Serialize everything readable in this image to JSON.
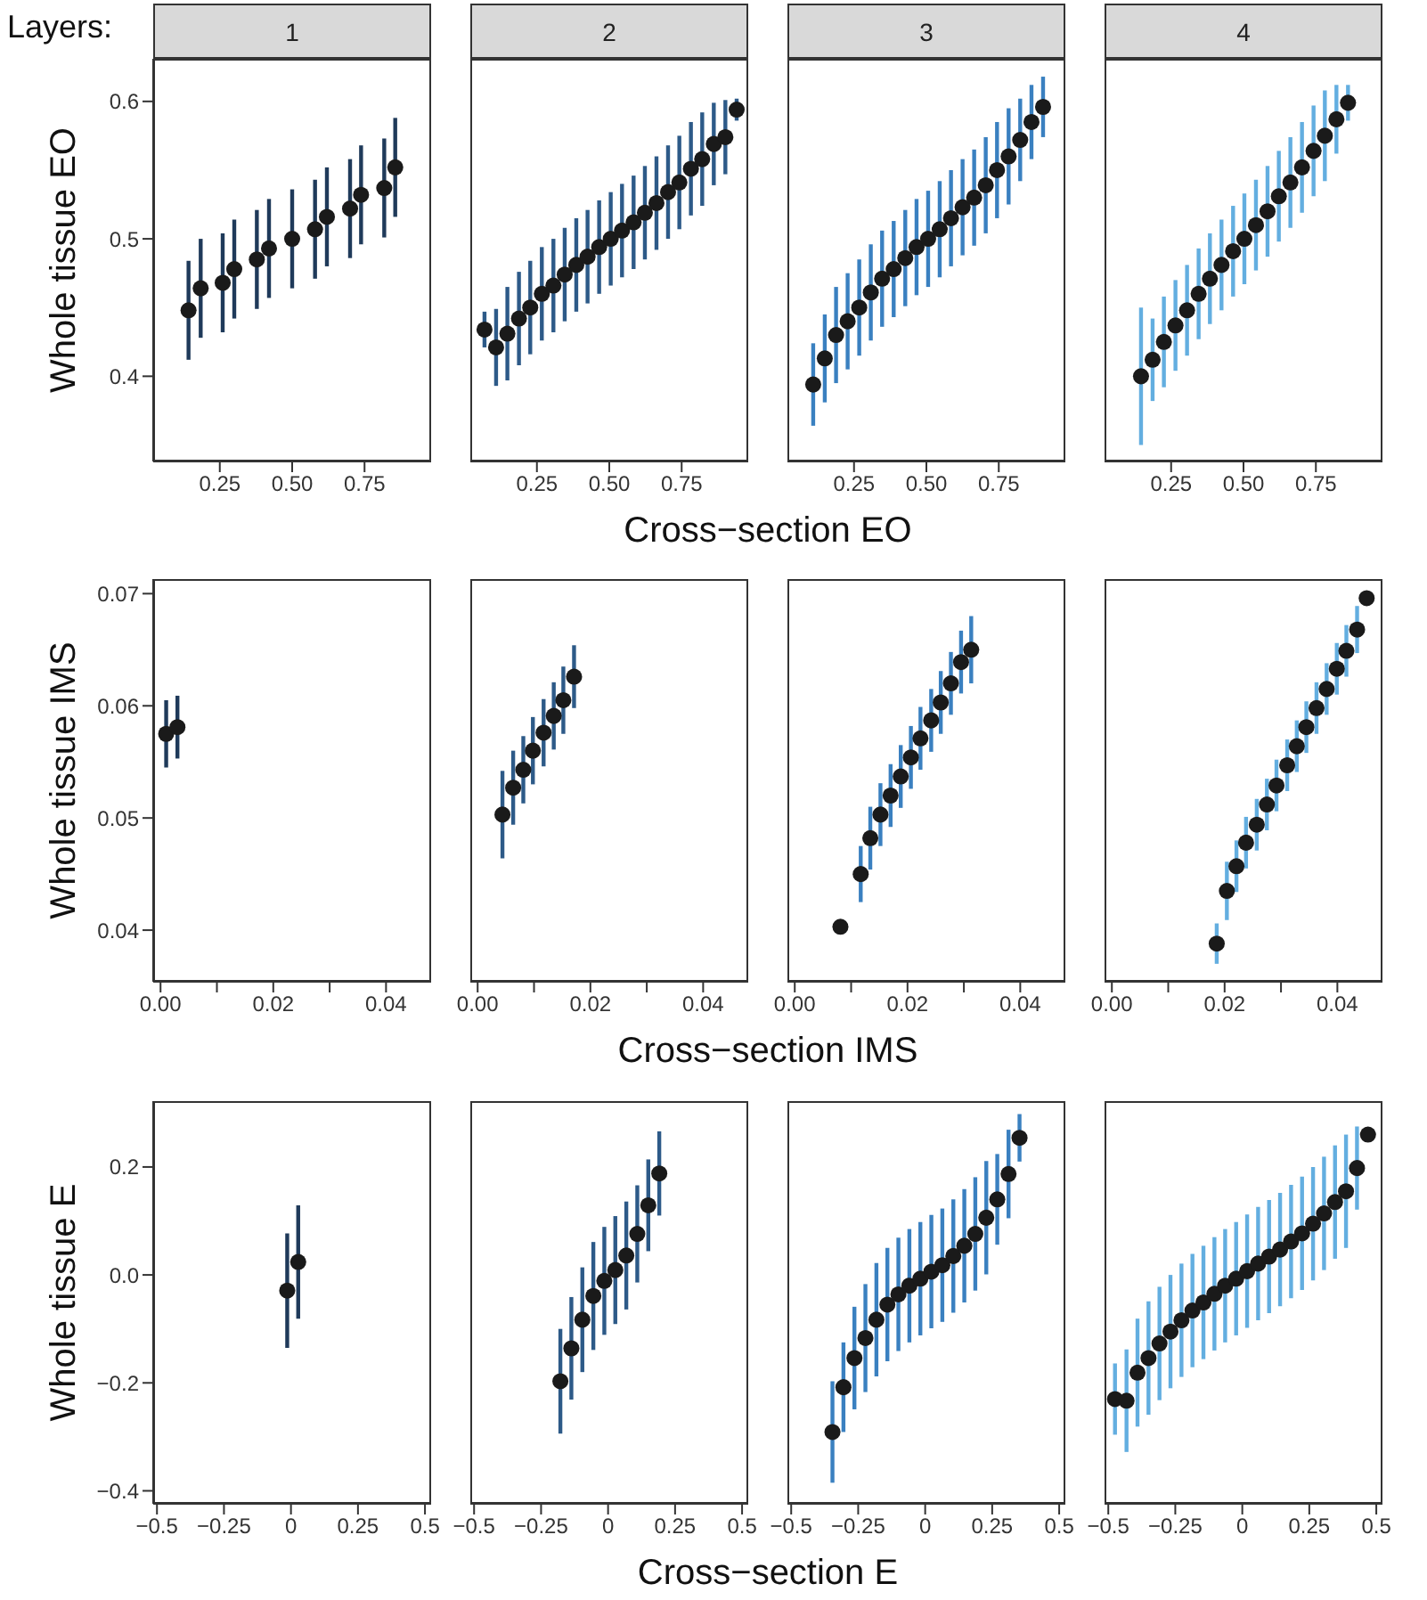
{
  "chart_data": [
    {
      "type": "scatter",
      "title": "1",
      "annotations": [
        "Layers:"
      ],
      "xlabel": "Cross−section EO",
      "ylabel": "Whole tissue EO",
      "marker": "circle",
      "color": "#1f3a5a",
      "series": [
        {
          "color": "#1a1a1a",
          "values": [
            0.448,
            0.464,
            0.468,
            0.478,
            0.485,
            0.493,
            0.5,
            0.507,
            0.516,
            0.522,
            0.532,
            0.537,
            0.552
          ],
          "errors": [
            0.036,
            0.036,
            0.036,
            0.036,
            0.036,
            0.036,
            0.036,
            0.036,
            0.036,
            0.036,
            0.036,
            0.036,
            0.036
          ]
        }
      ],
      "xlim": [
        0.02,
        0.98
      ],
      "ylim": [
        0.338,
        0.631
      ],
      "xticks": [
        0.25,
        {
          "value": 0.5,
          "label": "0.50"
        },
        0.75
      ],
      "yticks": [
        0.4,
        0.5,
        0.6
      ],
      "x": [
        0.142,
        0.184,
        0.26,
        0.3,
        0.378,
        0.42,
        0.5,
        0.579,
        0.62,
        0.7,
        0.738,
        0.818,
        0.856
      ]
    },
    {
      "type": "scatter",
      "title": "2",
      "tick_labels": "x",
      "marker": "circle",
      "color": "#2d5a88",
      "series": [
        {
          "color": "#1a1a1a",
          "values": [
            0.434,
            0.421,
            0.431,
            0.442,
            0.45,
            0.46,
            0.466,
            0.474,
            0.481,
            0.487,
            0.494,
            0.5,
            0.506,
            0.512,
            0.519,
            0.526,
            0.534,
            0.541,
            0.551,
            0.558,
            0.569,
            0.574,
            0.594
          ],
          "errors": [
            0.013,
            0.028,
            0.034,
            0.034,
            0.034,
            0.034,
            0.034,
            0.034,
            0.034,
            0.034,
            0.034,
            0.034,
            0.034,
            0.034,
            0.034,
            0.034,
            0.034,
            0.034,
            0.034,
            0.034,
            0.03,
            0.027,
            0.008
          ]
        }
      ],
      "xlim": [
        0.02,
        0.98
      ],
      "ylim": [
        0.338,
        0.631
      ],
      "xticks": [
        0.25,
        {
          "value": 0.5,
          "label": "0.50"
        },
        0.75
      ],
      "yticks": [
        0.4,
        0.5,
        0.6
      ],
      "x": [
        0.069,
        0.109,
        0.148,
        0.188,
        0.227,
        0.267,
        0.307,
        0.346,
        0.386,
        0.425,
        0.465,
        0.505,
        0.544,
        0.584,
        0.623,
        0.663,
        0.703,
        0.742,
        0.782,
        0.821,
        0.861,
        0.901,
        0.94
      ]
    },
    {
      "type": "scatter",
      "title": "3",
      "tick_labels": "x",
      "marker": "circle",
      "color": "#3a80c0",
      "series": [
        {
          "color": "#1a1a1a",
          "values": [
            0.394,
            0.413,
            0.43,
            0.44,
            0.45,
            0.461,
            0.471,
            0.478,
            0.486,
            0.494,
            0.5,
            0.507,
            0.515,
            0.523,
            0.53,
            0.539,
            0.55,
            0.56,
            0.572,
            0.585,
            0.596
          ],
          "errors": [
            0.03,
            0.032,
            0.035,
            0.035,
            0.035,
            0.035,
            0.035,
            0.035,
            0.035,
            0.035,
            0.035,
            0.035,
            0.035,
            0.035,
            0.035,
            0.035,
            0.035,
            0.035,
            0.03,
            0.027,
            0.022
          ]
        }
      ],
      "xlim": [
        0.02,
        0.98
      ],
      "ylim": [
        0.338,
        0.631
      ],
      "xticks": [
        0.25,
        {
          "value": 0.5,
          "label": "0.50"
        },
        0.75
      ],
      "yticks": [
        0.4,
        0.5,
        0.6
      ],
      "x": [
        0.109,
        0.149,
        0.188,
        0.228,
        0.268,
        0.308,
        0.347,
        0.387,
        0.427,
        0.466,
        0.506,
        0.546,
        0.585,
        0.625,
        0.665,
        0.705,
        0.744,
        0.784,
        0.824,
        0.863,
        0.903
      ]
    },
    {
      "type": "scatter",
      "title": "4",
      "tick_labels": "x",
      "marker": "circle",
      "color": "#63aee0",
      "series": [
        {
          "color": "#1a1a1a",
          "values": [
            0.4,
            0.412,
            0.425,
            0.437,
            0.448,
            0.46,
            0.471,
            0.481,
            0.491,
            0.5,
            0.51,
            0.52,
            0.531,
            0.541,
            0.552,
            0.564,
            0.575,
            0.587,
            0.599
          ],
          "errors": [
            0.05,
            0.03,
            0.033,
            0.033,
            0.033,
            0.033,
            0.033,
            0.033,
            0.033,
            0.033,
            0.033,
            0.033,
            0.033,
            0.033,
            0.033,
            0.033,
            0.033,
            0.025,
            0.013
          ]
        }
      ],
      "xlim": [
        0.02,
        0.98
      ],
      "ylim": [
        0.338,
        0.631
      ],
      "xticks": [
        0.25,
        {
          "value": 0.5,
          "label": "0.50"
        },
        0.75
      ],
      "yticks": [
        0.4,
        0.5,
        0.6
      ],
      "x": [
        0.146,
        0.186,
        0.225,
        0.265,
        0.305,
        0.345,
        0.384,
        0.424,
        0.464,
        0.503,
        0.543,
        0.583,
        0.622,
        0.662,
        0.702,
        0.742,
        0.781,
        0.821,
        0.861
      ]
    },
    {
      "type": "scatter",
      "xlabel": "Cross−section IMS",
      "ylabel": "Whole tissue IMS",
      "marker": "circle",
      "color": "#1f3a5a",
      "series": [
        {
          "color": "#1a1a1a",
          "values": [
            0.0575,
            0.0581
          ],
          "errors": [
            0.003,
            0.0028
          ]
        }
      ],
      "xlim": [
        -0.0013,
        0.048
      ],
      "ylim": [
        0.0354,
        0.0713
      ],
      "xticks": [
        {
          "value": 0,
          "label": "0.00"
        },
        {
          "value": 0.01,
          "label": null
        },
        0.02,
        {
          "value": 0.03,
          "label": null
        },
        0.04
      ],
      "yticks": [
        0.04,
        0.05,
        0.06,
        0.07
      ],
      "x": [
        0.001,
        0.003
      ]
    },
    {
      "type": "scatter",
      "tick_labels": "x",
      "marker": "circle",
      "color": "#2d5a88",
      "series": [
        {
          "color": "#1a1a1a",
          "values": [
            0.0503,
            0.0527,
            0.0543,
            0.056,
            0.0576,
            0.0591,
            0.0605,
            0.0626
          ],
          "errors": [
            0.0039,
            0.0033,
            0.003,
            0.003,
            0.003,
            0.003,
            0.003,
            0.0028
          ]
        }
      ],
      "xlim": [
        -0.0013,
        0.048
      ],
      "ylim": [
        0.0354,
        0.0713
      ],
      "xticks": [
        {
          "value": 0,
          "label": "0.00"
        },
        {
          "value": 0.01,
          "label": null
        },
        0.02,
        {
          "value": 0.03,
          "label": null
        },
        0.04
      ],
      "yticks": [
        0.04,
        0.05,
        0.06,
        0.07
      ],
      "x": [
        0.0044,
        0.0063,
        0.0081,
        0.0098,
        0.0117,
        0.0135,
        0.0152,
        0.0171
      ]
    },
    {
      "type": "scatter",
      "tick_labels": "x",
      "marker": "circle",
      "color": "#3a80c0",
      "series": [
        {
          "color": "#1a1a1a",
          "values": [
            0.0403,
            0.045,
            0.0482,
            0.0503,
            0.052,
            0.0537,
            0.0554,
            0.0571,
            0.0587,
            0.0603,
            0.062,
            0.0639,
            0.065
          ],
          "errors": [
            null,
            0.0025,
            0.0028,
            0.0028,
            0.0028,
            0.0028,
            0.0028,
            0.0028,
            0.0028,
            0.0028,
            0.0028,
            0.0028,
            0.003
          ]
        }
      ],
      "xlim": [
        -0.0013,
        0.048
      ],
      "ylim": [
        0.0354,
        0.0713
      ],
      "xticks": [
        {
          "value": 0,
          "label": "0.00"
        },
        {
          "value": 0.01,
          "label": null
        },
        0.02,
        {
          "value": 0.03,
          "label": null
        },
        0.04
      ],
      "yticks": [
        0.04,
        0.05,
        0.06,
        0.07
      ],
      "x": [
        0.0081,
        0.0117,
        0.0134,
        0.0152,
        0.017,
        0.0188,
        0.0206,
        0.0223,
        0.0242,
        0.0259,
        0.0277,
        0.0295,
        0.0313
      ]
    },
    {
      "type": "scatter",
      "tick_labels": "x",
      "marker": "circle",
      "color": "#63aee0",
      "series": [
        {
          "color": "#1a1a1a",
          "values": [
            0.0388,
            0.0435,
            0.0457,
            0.0478,
            0.0494,
            0.0512,
            0.0529,
            0.0547,
            0.0564,
            0.0581,
            0.0598,
            0.0615,
            0.0633,
            0.0649,
            0.0668,
            0.0696
          ],
          "errors": [
            0.0018,
            0.0026,
            0.0023,
            0.0023,
            0.0023,
            0.0023,
            0.0023,
            0.0023,
            0.0023,
            0.0023,
            0.0023,
            0.0023,
            0.0023,
            0.0023,
            0.0021,
            null
          ]
        }
      ],
      "xlim": [
        -0.0013,
        0.048
      ],
      "ylim": [
        0.0354,
        0.0713
      ],
      "xticks": [
        {
          "value": 0,
          "label": "0.00"
        },
        {
          "value": 0.01,
          "label": null
        },
        0.02,
        {
          "value": 0.03,
          "label": null
        },
        0.04
      ],
      "yticks": [
        0.04,
        0.05,
        0.06,
        0.07
      ],
      "x": [
        0.0186,
        0.0204,
        0.0221,
        0.0238,
        0.0257,
        0.0275,
        0.0292,
        0.0311,
        0.0328,
        0.0345,
        0.0363,
        0.0381,
        0.0399,
        0.0416,
        0.0435,
        0.0452
      ]
    },
    {
      "type": "scatter",
      "xlabel": "Cross−section E",
      "ylabel": "Whole tissue E",
      "marker": "circle",
      "color": "#1f3a5a",
      "series": [
        {
          "color": "#1a1a1a",
          "values": [
            -0.029,
            0.024
          ],
          "errors": [
            0.106,
            0.105
          ]
        }
      ],
      "xlim": [
        -0.514,
        0.523
      ],
      "ylim": [
        -0.424,
        0.322
      ],
      "xticks": [
        {
          "value": -0.5,
          "label": "−0.5"
        },
        {
          "value": -0.25,
          "label": "−0.25"
        },
        0,
        0.25,
        0.5
      ],
      "yticks": [
        {
          "value": -0.4,
          "label": "−0.4"
        },
        {
          "value": -0.2,
          "label": "−0.2"
        },
        {
          "value": 0,
          "label": "0.0"
        },
        0.2
      ],
      "x": [
        -0.014,
        0.027
      ]
    },
    {
      "type": "scatter",
      "tick_labels": "x",
      "marker": "circle",
      "color": "#2d5a88",
      "series": [
        {
          "color": "#1a1a1a",
          "values": [
            -0.197,
            -0.136,
            -0.083,
            -0.039,
            -0.011,
            0.009,
            0.036,
            0.076,
            0.129,
            0.188
          ],
          "errors": [
            0.097,
            0.095,
            0.097,
            0.1,
            0.1,
            0.1,
            0.1,
            0.09,
            0.085,
            0.078
          ]
        }
      ],
      "xlim": [
        -0.514,
        0.523
      ],
      "ylim": [
        -0.424,
        0.322
      ],
      "xticks": [
        {
          "value": -0.5,
          "label": "−0.5"
        },
        {
          "value": -0.25,
          "label": "−0.25"
        },
        0,
        0.25,
        0.5
      ],
      "x": [
        -0.178,
        -0.137,
        -0.096,
        -0.055,
        -0.014,
        0.027,
        0.068,
        0.109,
        0.15,
        0.191
      ]
    },
    {
      "type": "scatter",
      "tick_labels": "x",
      "marker": "circle",
      "color": "#3a80c0",
      "series": [
        {
          "color": "#1a1a1a",
          "values": [
            -0.291,
            -0.208,
            -0.154,
            -0.117,
            -0.083,
            -0.055,
            -0.036,
            -0.02,
            -0.007,
            0.006,
            0.018,
            0.035,
            0.054,
            0.076,
            0.106,
            0.14,
            0.187,
            0.254
          ],
          "errors": [
            0.094,
            0.083,
            0.095,
            0.1,
            0.105,
            0.105,
            0.105,
            0.105,
            0.105,
            0.105,
            0.105,
            0.105,
            0.105,
            0.105,
            0.105,
            0.084,
            0.082,
            0.044
          ]
        }
      ],
      "xlim": [
        -0.514,
        0.523
      ],
      "ylim": [
        -0.424,
        0.322
      ],
      "xticks": [
        {
          "value": -0.5,
          "label": "−0.5"
        },
        {
          "value": -0.25,
          "label": "−0.25"
        },
        0,
        0.25,
        0.5
      ],
      "x": [
        -0.346,
        -0.305,
        -0.264,
        -0.223,
        -0.182,
        -0.141,
        -0.1,
        -0.059,
        -0.018,
        0.023,
        0.064,
        0.105,
        0.146,
        0.187,
        0.228,
        0.269,
        0.311,
        0.352
      ]
    },
    {
      "type": "scatter",
      "tick_labels": "x",
      "marker": "circle",
      "color": "#63aee0",
      "series": [
        {
          "color": "#1a1a1a",
          "values": [
            -0.23,
            -0.233,
            -0.181,
            -0.154,
            -0.127,
            -0.105,
            -0.084,
            -0.066,
            -0.051,
            -0.035,
            -0.02,
            -0.007,
            0.007,
            0.021,
            0.034,
            0.047,
            0.062,
            0.077,
            0.095,
            0.114,
            0.135,
            0.155,
            0.198,
            0.26
          ],
          "errors": [
            0.066,
            0.095,
            0.1,
            0.105,
            0.105,
            0.105,
            0.105,
            0.105,
            0.105,
            0.105,
            0.105,
            0.105,
            0.105,
            0.105,
            0.105,
            0.105,
            0.105,
            0.105,
            0.105,
            0.105,
            0.105,
            0.105,
            0.077,
            null
          ]
        }
      ],
      "xlim": [
        -0.514,
        0.523
      ],
      "ylim": [
        -0.424,
        0.322
      ],
      "xticks": [
        {
          "value": -0.5,
          "label": "−0.5"
        },
        {
          "value": -0.25,
          "label": "−0.25"
        },
        0,
        0.25,
        0.5
      ],
      "x": [
        -0.475,
        -0.432,
        -0.391,
        -0.35,
        -0.309,
        -0.268,
        -0.227,
        -0.186,
        -0.145,
        -0.104,
        -0.064,
        -0.023,
        0.018,
        0.059,
        0.1,
        0.141,
        0.182,
        0.223,
        0.264,
        0.305,
        0.346,
        0.387,
        0.428,
        0.469
      ]
    }
  ]
}
